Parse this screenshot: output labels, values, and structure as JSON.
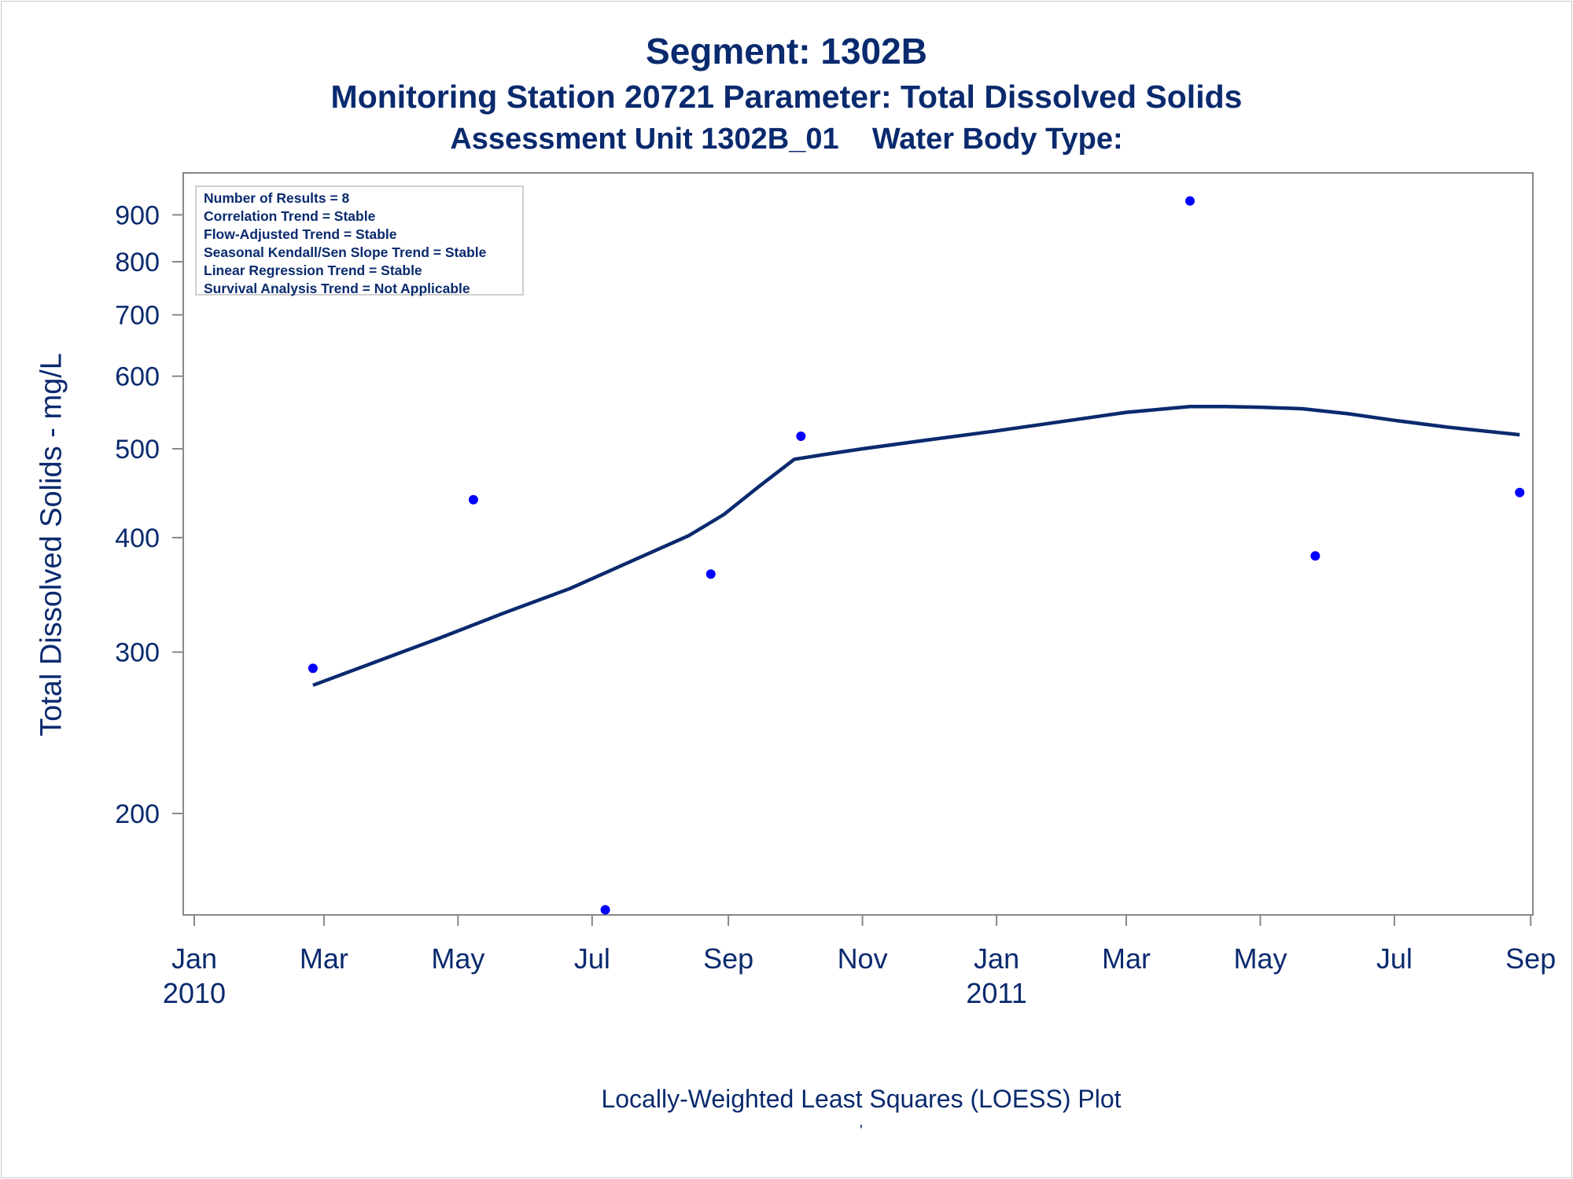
{
  "title": "Segment: 1302B",
  "subtitle1": "Monitoring Station 20721 Parameter: Total Dissolved Solids",
  "subtitle2_a": "Assessment Unit 1302B_01",
  "subtitle2_b": "Water Body Type:",
  "ylabel": "Total Dissolved Solids - mg/L",
  "footnote": "Locally-Weighted Least Squares (LOESS) Plot",
  "footmark": "'",
  "stats": [
    "Number of Results = 8",
    "Correlation Trend = Stable",
    "Flow-Adjusted Trend = Stable",
    "Seasonal Kendall/Sen Slope Trend = Stable",
    "Linear Regression Trend = Stable",
    "Survival Analysis Trend = Not Applicable"
  ],
  "colors": {
    "text": "#0a2a6e",
    "points": "#0000ff",
    "line": "#0a2a6e",
    "frame": "#888888"
  },
  "chart_data": {
    "type": "scatter",
    "yscale": "log",
    "xlim": [
      "2009-12-27",
      "2011-09-02"
    ],
    "ylim": [
      155,
      1000
    ],
    "grid": false,
    "x_ticks": [
      {
        "date": "2010-01-01",
        "label": "Jan",
        "label2": "2010"
      },
      {
        "date": "2010-03-01",
        "label": "Mar",
        "label2": ""
      },
      {
        "date": "2010-05-01",
        "label": "May",
        "label2": ""
      },
      {
        "date": "2010-07-01",
        "label": "Jul",
        "label2": ""
      },
      {
        "date": "2010-09-01",
        "label": "Sep",
        "label2": ""
      },
      {
        "date": "2010-11-01",
        "label": "Nov",
        "label2": ""
      },
      {
        "date": "2011-01-01",
        "label": "Jan",
        "label2": "2011"
      },
      {
        "date": "2011-03-01",
        "label": "Mar",
        "label2": ""
      },
      {
        "date": "2011-05-01",
        "label": "May",
        "label2": ""
      },
      {
        "date": "2011-07-01",
        "label": "Jul",
        "label2": ""
      },
      {
        "date": "2011-09-01",
        "label": "Sep",
        "label2": ""
      }
    ],
    "y_ticks": [
      200,
      300,
      400,
      500,
      600,
      700,
      800,
      900
    ],
    "points": [
      {
        "x": "2010-02-24",
        "y": 288
      },
      {
        "x": "2010-05-08",
        "y": 440
      },
      {
        "x": "2010-07-07",
        "y": 157
      },
      {
        "x": "2010-08-24",
        "y": 365
      },
      {
        "x": "2010-10-04",
        "y": 516
      },
      {
        "x": "2011-03-30",
        "y": 932
      },
      {
        "x": "2011-05-26",
        "y": 382
      },
      {
        "x": "2011-08-27",
        "y": 448
      }
    ],
    "loess": [
      {
        "x": "2010-02-24",
        "y": 276
      },
      {
        "x": "2010-03-25",
        "y": 293
      },
      {
        "x": "2010-04-23",
        "y": 311
      },
      {
        "x": "2010-05-22",
        "y": 331
      },
      {
        "x": "2010-06-21",
        "y": 352
      },
      {
        "x": "2010-07-20",
        "y": 378
      },
      {
        "x": "2010-08-14",
        "y": 402
      },
      {
        "x": "2010-08-30",
        "y": 424
      },
      {
        "x": "2010-09-15",
        "y": 455
      },
      {
        "x": "2010-10-01",
        "y": 487
      },
      {
        "x": "2010-10-15",
        "y": 493
      },
      {
        "x": "2010-11-01",
        "y": 500
      },
      {
        "x": "2010-11-30",
        "y": 511
      },
      {
        "x": "2011-01-01",
        "y": 523
      },
      {
        "x": "2011-02-01",
        "y": 536
      },
      {
        "x": "2011-03-01",
        "y": 548
      },
      {
        "x": "2011-03-30",
        "y": 556
      },
      {
        "x": "2011-04-15",
        "y": 556
      },
      {
        "x": "2011-05-01",
        "y": 555
      },
      {
        "x": "2011-05-20",
        "y": 553
      },
      {
        "x": "2011-06-10",
        "y": 546
      },
      {
        "x": "2011-07-01",
        "y": 537
      },
      {
        "x": "2011-07-25",
        "y": 528
      },
      {
        "x": "2011-08-27",
        "y": 518
      }
    ]
  }
}
